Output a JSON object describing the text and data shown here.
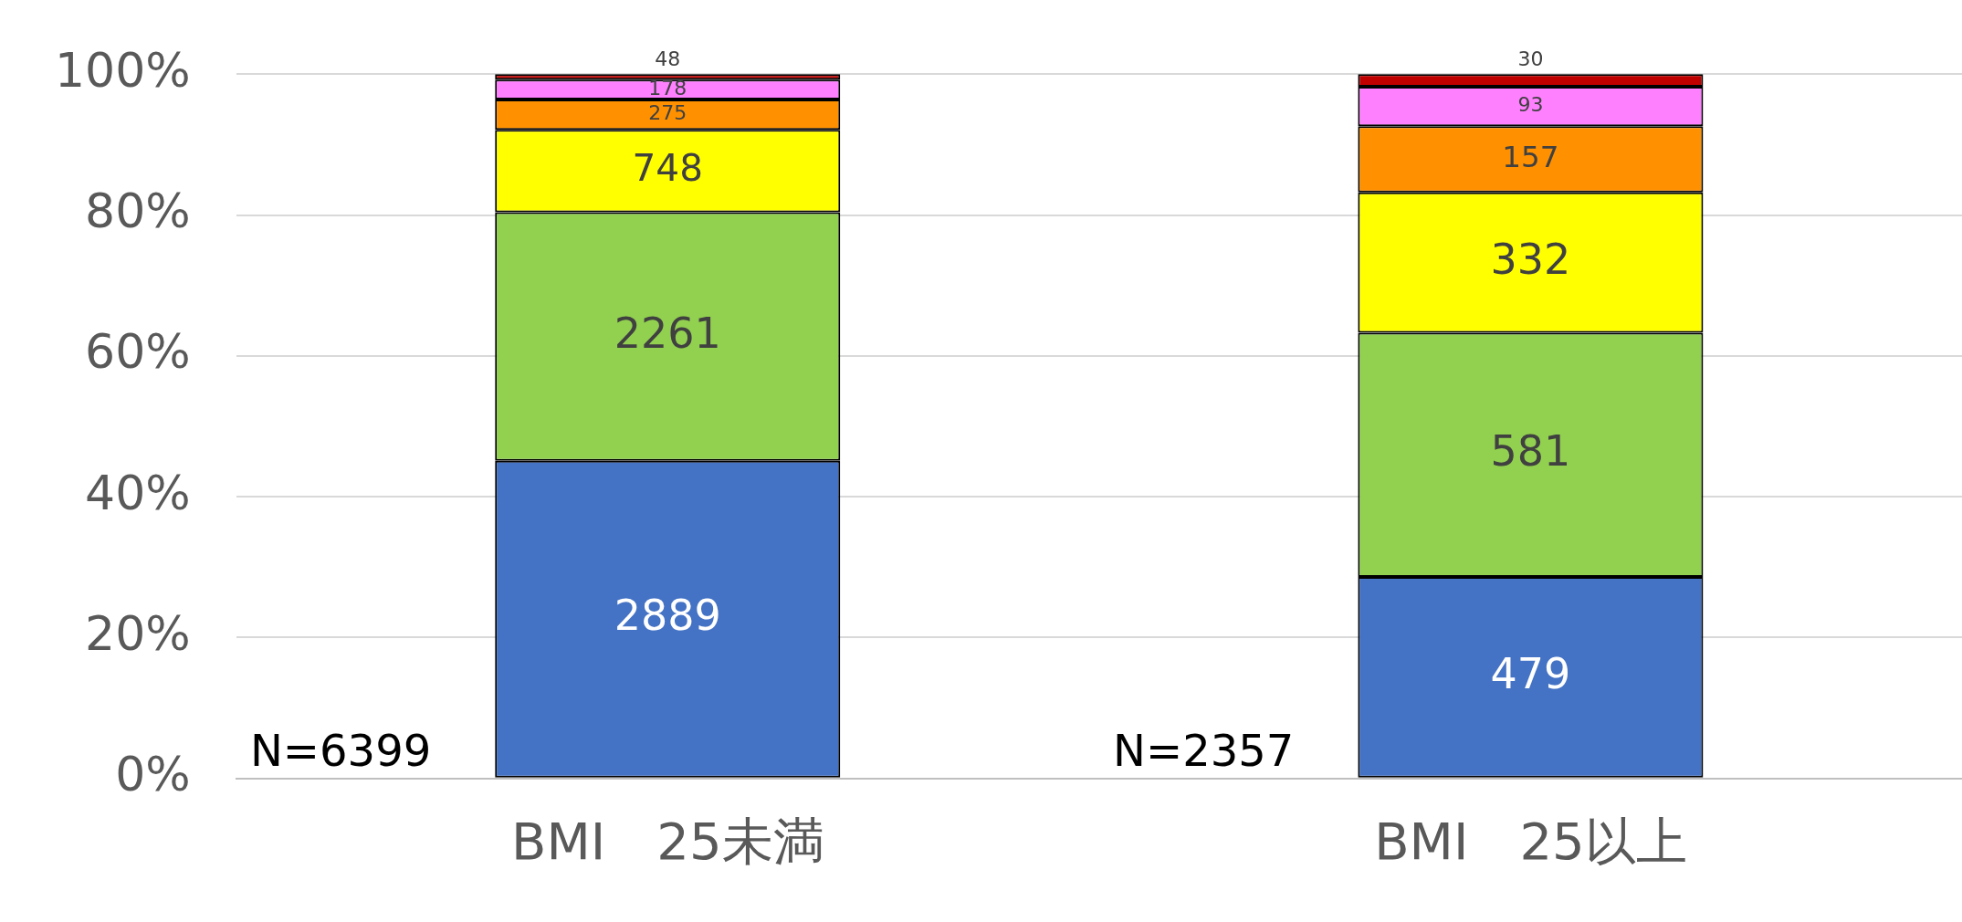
{
  "chart_data": {
    "type": "bar",
    "stacked": true,
    "categories": [
      "BMI　25未満",
      "BMI　25以上"
    ],
    "series": [
      {
        "color": "#4472c4",
        "values": [
          45.1,
          28.6
        ]
      },
      {
        "color": "#92d050",
        "values": [
          35.3,
          34.7
        ]
      },
      {
        "color": "#ffff00",
        "values": [
          11.7,
          19.9
        ]
      },
      {
        "color": "#ff9100",
        "values": [
          4.3,
          9.4
        ]
      },
      {
        "color": "#ff80ff",
        "values": [
          2.8,
          5.6
        ]
      },
      {
        "color": "#c00000",
        "values": [
          0.8,
          1.8
        ]
      }
    ],
    "ylim": [
      0,
      100
    ],
    "yticks": [
      {
        "value": 0,
        "label": "0%"
      },
      {
        "value": 20,
        "label": "20%"
      },
      {
        "value": 40,
        "label": "40%"
      },
      {
        "value": 60,
        "label": "60%"
      },
      {
        "value": 80,
        "label": "80%"
      },
      {
        "value": 100,
        "label": "100%"
      }
    ],
    "grid": "y",
    "legend": false,
    "annotations": [
      "N=6399",
      "N=2357",
      "2889",
      "2261",
      "748",
      "275",
      "178",
      "48",
      "479",
      "581",
      "332",
      "157",
      "93",
      "30"
    ]
  }
}
